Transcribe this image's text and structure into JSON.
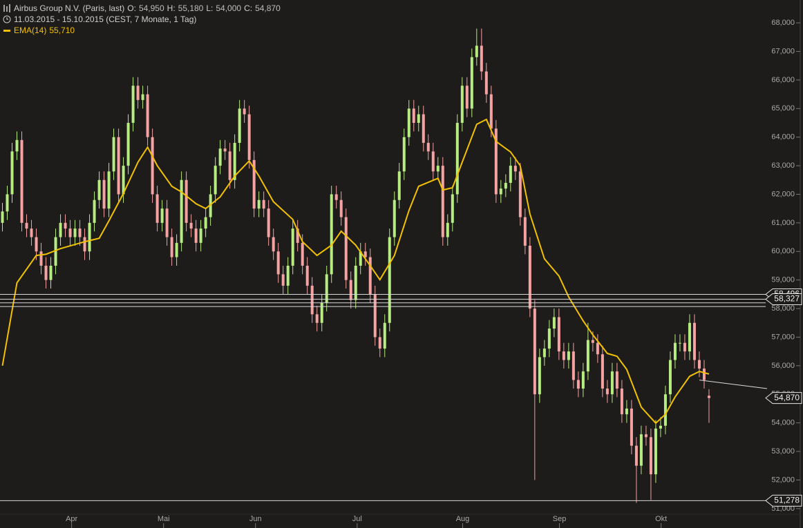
{
  "chart_data": {
    "type": "candlestick",
    "title": "Airbus Group N.V. (Paris, last)",
    "ohlc_names": [
      "O:",
      "H:",
      "L:",
      "C:"
    ],
    "ohlc_values": [
      {
        "value": 54950,
        "label": "54,950"
      },
      {
        "value": 55180,
        "label": "55,180"
      },
      {
        "value": 54000,
        "label": "54,000"
      },
      {
        "value": 54870,
        "label": "54,870"
      }
    ],
    "range": "11.03.2015 - 15.10.2015 (CEST, 7 Monate, 1 Tag)",
    "up_color": "#b6ec80",
    "down_color": "#f4a2a2",
    "open": [
      61000,
      61400,
      62000,
      63500,
      63900,
      61000,
      60800,
      60500,
      60000,
      59500,
      59000,
      59500,
      60500,
      61000,
      60800,
      60500,
      60800,
      60500,
      60000,
      61000,
      61800,
      62500,
      61500,
      62800,
      64000,
      62000,
      63000,
      64500,
      65800,
      65300,
      65500,
      64000,
      62000,
      61000,
      61500,
      60500,
      59800,
      60300,
      62500,
      61000,
      60800,
      60300,
      60800,
      61200,
      62000,
      63000,
      63600,
      63500,
      62500,
      63800,
      65000,
      64800,
      63200,
      61500,
      61800,
      61500,
      60500,
      60000,
      59200,
      58800,
      59500,
      60800,
      60300,
      59500,
      58800,
      57800,
      57500,
      58200,
      59200,
      62000,
      61800,
      61200,
      59000,
      58300,
      59500,
      60000,
      59800,
      58500,
      57000,
      56600,
      57500,
      60500,
      61800,
      62800,
      64000,
      65000,
      64500,
      64800,
      63800,
      63500,
      62800,
      63000,
      60500,
      61000,
      62000,
      64500,
      65800,
      65000,
      66800,
      67200,
      66300,
      65500,
      64300,
      62000,
      62200,
      62400,
      63000,
      62800,
      61200,
      60200,
      58000,
      55000,
      56300,
      56600,
      57300,
      57700,
      56500,
      56200,
      56500,
      55500,
      55200,
      55800,
      56900,
      56800,
      56400,
      55200,
      55000,
      55800,
      55200,
      54300,
      54500,
      53200,
      52500,
      53600,
      53500,
      52200,
      53800,
      53900,
      55000,
      56200,
      56800,
      56800,
      56500,
      57500,
      56200,
      55900,
      54950
    ],
    "high": [
      61700,
      62300,
      63800,
      64200,
      64200,
      61300,
      61100,
      60800,
      60300,
      59800,
      59800,
      60800,
      61300,
      61300,
      61100,
      61100,
      61100,
      60800,
      61300,
      62100,
      62800,
      62800,
      63100,
      64300,
      64300,
      63300,
      64800,
      66100,
      66100,
      65800,
      65800,
      64300,
      62300,
      61800,
      61800,
      60800,
      60600,
      62800,
      62800,
      61300,
      61100,
      61100,
      61500,
      62300,
      63300,
      63900,
      63900,
      63800,
      64100,
      65300,
      65300,
      65100,
      63500,
      62100,
      62100,
      61800,
      60800,
      60300,
      59500,
      59800,
      61100,
      61100,
      60600,
      59800,
      59100,
      58100,
      58500,
      59500,
      62300,
      62300,
      62100,
      61500,
      59300,
      59800,
      60300,
      60300,
      60100,
      58800,
      57300,
      57800,
      60800,
      62100,
      63100,
      64300,
      65300,
      65300,
      65100,
      65100,
      64100,
      63800,
      63300,
      63300,
      61300,
      62300,
      64800,
      66100,
      66100,
      67100,
      67800,
      67800,
      66600,
      65800,
      64600,
      62500,
      62700,
      63300,
      63300,
      63100,
      61500,
      60500,
      58300,
      56600,
      56900,
      57600,
      58000,
      58000,
      56800,
      56800,
      56800,
      55800,
      56100,
      57500,
      57200,
      57100,
      56700,
      55500,
      56100,
      56100,
      55500,
      54800,
      54800,
      53500,
      53900,
      53900,
      53800,
      54100,
      54200,
      55300,
      56500,
      57100,
      57100,
      57100,
      57800,
      57800,
      56500,
      56200,
      55180
    ],
    "low": [
      60700,
      61100,
      61700,
      63200,
      60700,
      60500,
      60200,
      59700,
      59200,
      58700,
      58700,
      59200,
      60200,
      60500,
      60200,
      60200,
      60200,
      59700,
      59700,
      60700,
      61500,
      61200,
      61200,
      62500,
      61700,
      61700,
      62700,
      64200,
      65000,
      65000,
      63700,
      61700,
      60700,
      60700,
      60200,
      59500,
      59500,
      60000,
      60700,
      60500,
      60000,
      60000,
      60500,
      60900,
      61700,
      62700,
      63200,
      62200,
      62200,
      63500,
      64500,
      62900,
      61200,
      61200,
      61200,
      60200,
      59700,
      58900,
      58500,
      58500,
      59200,
      60000,
      59200,
      58500,
      57500,
      57200,
      57200,
      57900,
      58900,
      61500,
      60900,
      58700,
      58000,
      58000,
      59200,
      59500,
      58200,
      56700,
      56300,
      56300,
      57200,
      60200,
      61500,
      62500,
      63700,
      64200,
      64200,
      63500,
      63200,
      62500,
      62500,
      60200,
      60200,
      60700,
      61700,
      64200,
      64700,
      64700,
      66500,
      66000,
      65200,
      64000,
      61700,
      61700,
      61900,
      62100,
      62500,
      60900,
      59900,
      57700,
      52000,
      54700,
      56000,
      56300,
      57000,
      56200,
      55900,
      55900,
      55200,
      54900,
      54900,
      55500,
      56500,
      56100,
      54900,
      54700,
      54700,
      54900,
      54000,
      54000,
      52900,
      51200,
      52200,
      53200,
      51300,
      51900,
      53500,
      53600,
      54700,
      55900,
      56500,
      56200,
      56200,
      55900,
      55600,
      55200,
      54000
    ],
    "close": [
      61400,
      62000,
      63500,
      63900,
      61000,
      60800,
      60500,
      60000,
      59500,
      59000,
      59500,
      60500,
      61000,
      60800,
      60500,
      60800,
      60500,
      60000,
      61000,
      61800,
      62500,
      61500,
      62800,
      64000,
      62000,
      63000,
      64500,
      65800,
      65300,
      65500,
      64000,
      62000,
      61000,
      61500,
      60500,
      59800,
      60300,
      62500,
      61000,
      60800,
      60300,
      60800,
      61200,
      62000,
      63000,
      63600,
      63500,
      62500,
      63800,
      65000,
      64800,
      63200,
      61500,
      61800,
      61500,
      60500,
      60000,
      59200,
      58800,
      59500,
      60800,
      60300,
      59500,
      58800,
      57800,
      57500,
      58200,
      59200,
      62000,
      61800,
      61200,
      59000,
      58300,
      59500,
      60000,
      59800,
      58500,
      57000,
      56600,
      57500,
      60500,
      61800,
      62800,
      64000,
      65000,
      64500,
      64800,
      63800,
      63500,
      62800,
      63000,
      60500,
      61000,
      62000,
      64500,
      65800,
      65000,
      66800,
      67200,
      66300,
      65500,
      64300,
      62000,
      62200,
      62400,
      63000,
      62800,
      61200,
      60200,
      58000,
      55000,
      56300,
      56600,
      57300,
      57700,
      56500,
      56200,
      56500,
      55500,
      55200,
      55800,
      56900,
      56800,
      56400,
      55200,
      55000,
      55800,
      55200,
      54300,
      54500,
      53200,
      52500,
      53600,
      53500,
      52200,
      53800,
      53900,
      55000,
      56200,
      56800,
      56800,
      56500,
      57500,
      56200,
      55900,
      55500,
      54870
    ],
    "ema": {
      "name": "EMA(14)",
      "color": "#f2c200",
      "last_label": "55,710",
      "x": [
        0,
        3,
        7,
        9,
        12,
        17,
        20,
        22,
        25,
        28,
        30,
        32,
        35,
        37,
        40,
        42,
        45,
        48,
        51,
        53,
        56,
        60,
        62,
        65,
        68,
        70,
        73,
        76,
        78,
        81,
        84,
        86,
        90,
        91,
        93,
        95,
        98,
        100,
        102,
        105,
        107,
        109,
        112,
        115,
        117,
        120,
        122,
        125,
        127,
        129,
        132,
        135,
        137,
        139,
        142,
        144,
        146
      ],
      "values": [
        56000,
        58900,
        59860,
        59900,
        60100,
        60340,
        60460,
        61070,
        62030,
        63120,
        63650,
        63000,
        62280,
        62080,
        61670,
        61500,
        61910,
        62640,
        63170,
        62640,
        61740,
        61120,
        60340,
        59860,
        60220,
        60710,
        60220,
        59500,
        59010,
        59860,
        61430,
        62280,
        62560,
        62150,
        62230,
        63120,
        64450,
        64620,
        63850,
        63480,
        63000,
        61310,
        59740,
        59140,
        58410,
        57570,
        57080,
        56430,
        56330,
        55870,
        54550,
        53990,
        54300,
        54910,
        55630,
        55800,
        55710
      ]
    },
    "hlines": [
      {
        "value": 58496,
        "label": "58,496"
      },
      58200,
      58070,
      {
        "value": 58327,
        "label": "58,327"
      },
      {
        "value": 51278,
        "label": "51,278"
      }
    ],
    "trendline": {
      "x": [
        144,
        158
      ],
      "values": [
        55500,
        55200
      ]
    },
    "last_price": {
      "value": 54870,
      "label": "54,870"
    },
    "xlim": [
      -0.5,
      158
    ],
    "xticks": [
      {
        "value": 14.3,
        "label": "Apr"
      },
      {
        "value": 33.3,
        "label": "Mai"
      },
      {
        "value": 52.3,
        "label": "Jun"
      },
      {
        "value": 73.3,
        "label": "Jul"
      },
      {
        "value": 95.1,
        "label": "Aug"
      },
      {
        "value": 115.1,
        "label": "Sep"
      },
      {
        "value": 136.1,
        "label": "Okt"
      }
    ],
    "ylim": [
      50320,
      68800
    ],
    "yticks": [
      {
        "value": 51000,
        "label": "51,000"
      },
      {
        "value": 52000,
        "label": "52,000"
      },
      {
        "value": 53000,
        "label": "53,000"
      },
      {
        "value": 54000,
        "label": "54,000"
      },
      {
        "value": 55000,
        "label": "55,000"
      },
      {
        "value": 56000,
        "label": "56,000"
      },
      {
        "value": 57000,
        "label": "57,000"
      },
      {
        "value": 58000,
        "label": "58,000"
      },
      {
        "value": 59000,
        "label": "59,000"
      },
      {
        "value": 60000,
        "label": "60,000"
      },
      {
        "value": 61000,
        "label": "61,000"
      },
      {
        "value": 62000,
        "label": "62,000"
      },
      {
        "value": 63000,
        "label": "63,000"
      },
      {
        "value": 64000,
        "label": "64,000"
      },
      {
        "value": 65000,
        "label": "65,000"
      },
      {
        "value": 66000,
        "label": "66,000"
      },
      {
        "value": 67000,
        "label": "67,000"
      },
      {
        "value": 68000,
        "label": "68,000"
      }
    ]
  }
}
